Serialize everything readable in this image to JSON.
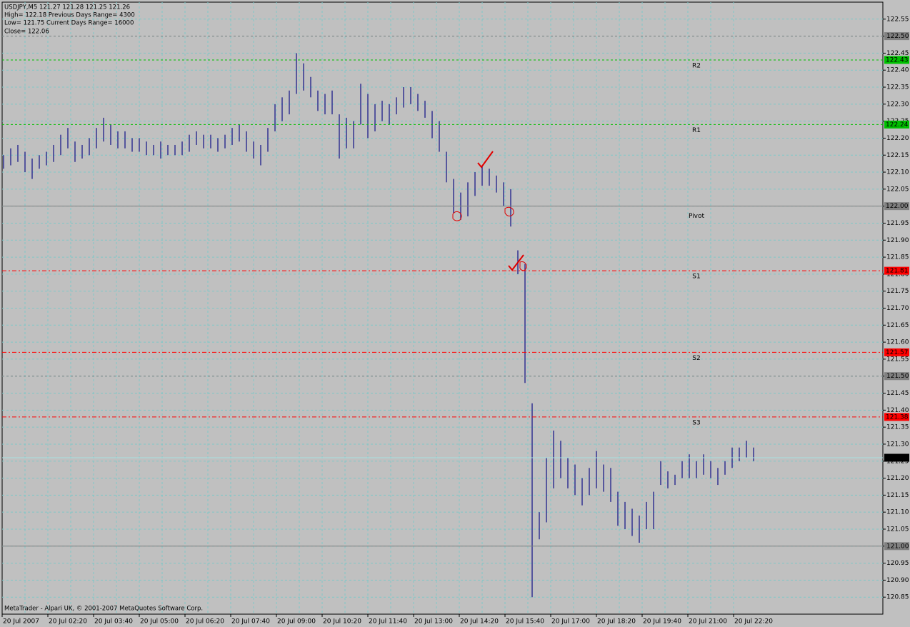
{
  "chart_data": {
    "type": "hilo",
    "info": [
      "USDJPY,M5  121.27 121.28 121.25 121.26",
      "High= 122.18   Previous Days Range= 4300",
      "Low= 121.75   Current Days Range= 16000",
      "Close= 122.06"
    ],
    "footer": "MetaTrader - Alpari UK, © 2001-2007 MetaQuotes Software Corp.",
    "categories": [
      "20 Jul 2007",
      "20 Jul 02:20",
      "20 Jul 03:40",
      "20 Jul 05:00",
      "20 Jul 06:20",
      "20 Jul 07:40",
      "20 Jul 09:00",
      "20 Jul 10:20",
      "20 Jul 11:40",
      "20 Jul 13:00",
      "20 Jul 14:20",
      "20 Jul 15:40",
      "20 Jul 17:00",
      "20 Jul 18:20",
      "20 Jul 19:40",
      "20 Jul 21:00",
      "20 Jul 22:20"
    ],
    "bar_color": "#1c1c8a",
    "high": [
      122.15,
      122.17,
      122.18,
      122.16,
      122.14,
      122.15,
      122.16,
      122.18,
      122.21,
      122.23,
      122.19,
      122.18,
      122.2,
      122.23,
      122.26,
      122.24,
      122.22,
      122.22,
      122.2,
      122.2,
      122.19,
      122.18,
      122.19,
      122.18,
      122.18,
      122.19,
      122.21,
      122.22,
      122.21,
      122.21,
      122.2,
      122.21,
      122.23,
      122.24,
      122.22,
      122.19,
      122.18,
      122.23,
      122.3,
      122.32,
      122.34,
      122.45,
      122.42,
      122.38,
      122.34,
      122.33,
      122.34,
      122.27,
      122.26,
      122.25,
      122.36,
      122.33,
      122.3,
      122.31,
      122.3,
      122.32,
      122.35,
      122.35,
      122.33,
      122.31,
      122.28,
      122.25,
      122.16,
      122.08,
      122.04,
      122.07,
      122.1,
      122.12,
      122.11,
      122.09,
      122.07,
      122.05,
      121.87,
      121.83,
      121.42,
      121.1,
      121.26,
      121.34,
      121.31,
      121.26,
      121.24,
      121.2,
      121.23,
      121.28,
      121.24,
      121.23,
      121.16,
      121.13,
      121.11,
      121.09,
      121.13,
      121.16,
      121.25,
      121.22,
      121.21,
      121.25,
      121.27,
      121.25,
      121.27,
      121.25,
      121.23,
      121.25,
      121.29,
      121.29,
      121.31,
      121.29
    ],
    "low": [
      122.11,
      122.12,
      122.13,
      122.1,
      122.08,
      122.11,
      122.12,
      122.13,
      122.15,
      122.17,
      122.13,
      122.14,
      122.15,
      122.17,
      122.19,
      122.18,
      122.17,
      122.17,
      122.16,
      122.16,
      122.15,
      122.15,
      122.14,
      122.15,
      122.15,
      122.15,
      122.16,
      122.18,
      122.17,
      122.17,
      122.16,
      122.17,
      122.18,
      122.19,
      122.16,
      122.14,
      122.12,
      122.16,
      122.22,
      122.25,
      122.27,
      122.33,
      122.34,
      122.32,
      122.28,
      122.27,
      122.27,
      122.14,
      122.17,
      122.17,
      122.24,
      122.2,
      122.22,
      122.25,
      122.24,
      122.27,
      122.29,
      122.3,
      122.28,
      122.26,
      122.2,
      122.16,
      122.07,
      121.98,
      121.96,
      121.97,
      122.03,
      122.06,
      122.06,
      122.04,
      122.0,
      121.94,
      121.8,
      121.48,
      120.85,
      121.02,
      121.07,
      121.17,
      121.2,
      121.17,
      121.15,
      121.12,
      121.15,
      121.17,
      121.16,
      121.13,
      121.06,
      121.05,
      121.03,
      121.01,
      121.05,
      121.05,
      121.18,
      121.17,
      121.18,
      121.2,
      121.2,
      121.2,
      121.21,
      121.2,
      121.18,
      121.21,
      121.23,
      121.25,
      121.26,
      121.25
    ],
    "ylim": [
      120.8,
      122.6
    ],
    "yticks": [
      122.55,
      {
        "value": 122.5,
        "label": "122.50"
      },
      122.45,
      {
        "value": 122.4,
        "label": "122.40"
      },
      122.35,
      {
        "value": 122.3,
        "label": "122.30"
      },
      122.25,
      {
        "value": 122.2,
        "label": "122.20"
      },
      122.15,
      {
        "value": 122.1,
        "label": "122.10"
      },
      122.05,
      {
        "value": 122.0,
        "label": "122.00"
      },
      121.95,
      {
        "value": 121.9,
        "label": "121.90"
      },
      121.85,
      {
        "value": 121.8,
        "label": "121.80"
      },
      121.75,
      {
        "value": 121.7,
        "label": "121.70"
      },
      121.65,
      {
        "value": 121.6,
        "label": "121.60"
      },
      121.55,
      {
        "value": 121.5,
        "label": "121.50"
      },
      121.45,
      {
        "value": 121.4,
        "label": "121.40"
      },
      121.35,
      {
        "value": 121.3,
        "label": "121.30"
      },
      121.25,
      {
        "value": 121.2,
        "label": "121.20"
      },
      121.15,
      {
        "value": 121.1,
        "label": "121.10"
      },
      121.05,
      {
        "value": 121.0,
        "label": "121.00"
      },
      120.95,
      {
        "value": 120.9,
        "label": "120.90"
      },
      120.85
    ],
    "grid": true,
    "levels": [
      {
        "name": "R2",
        "value": 122.43,
        "color": "#00c000",
        "style": "dash"
      },
      {
        "name": "R1",
        "value": 122.24,
        "color": "#00c000",
        "style": "dash"
      },
      {
        "name": "Pivot",
        "value": 122.0,
        "label": "122.00",
        "color": "#808080",
        "style": "solid"
      },
      {
        "name": "S1",
        "value": 121.81,
        "color": "#ff0000",
        "style": "dashdot"
      },
      {
        "name": "S2",
        "value": 121.57,
        "color": "#ff0000",
        "style": "dashdot"
      },
      {
        "name": "S3",
        "value": 121.38,
        "color": "#ff0000",
        "style": "dashdot"
      }
    ],
    "price_lines": [
      {
        "value": 122.5,
        "label": "122.50",
        "color": "#808080",
        "style": "dash"
      },
      {
        "value": 121.5,
        "label": "121.50",
        "color": "#808080",
        "style": "dash"
      },
      {
        "value": 121.0,
        "label": "121.00",
        "color": "#808080",
        "style": "solid"
      }
    ],
    "current_price": 121.26
  }
}
